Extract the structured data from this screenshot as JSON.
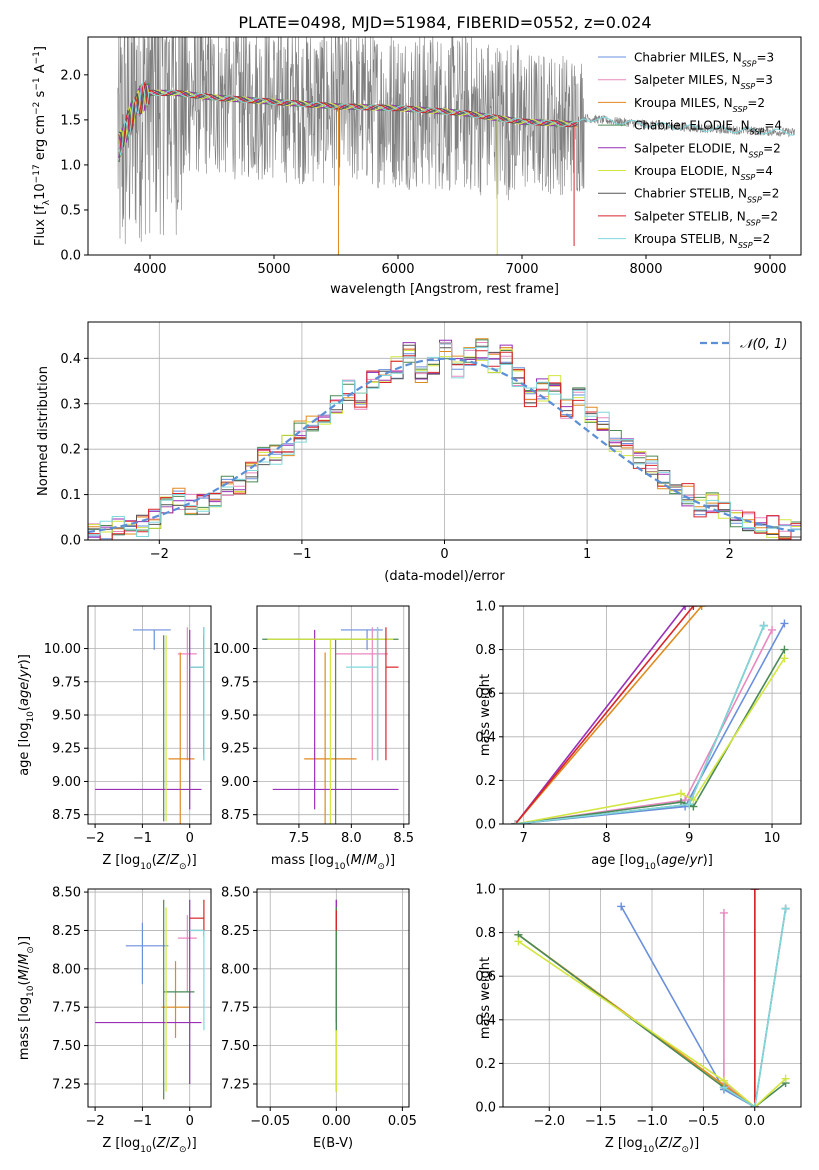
{
  "figure": {
    "title": "PLATE=0498, MJD=51984, FIBERID=0552, z=0.024"
  },
  "colors": {
    "Chabrier MILES": "#6a8fdc",
    "Salpeter MILES": "#e889c0",
    "Kroupa MILES": "#e08a1e",
    "Chabrier ELODIE": "#4a8a55",
    "Salpeter ELODIE": "#9a2fb8",
    "Kroupa ELODIE": "#d3e640",
    "Chabrier STELIB": "#555555",
    "Salpeter STELIB": "#d8252a",
    "Kroupa STELIB": "#7fd8dc",
    "data": "#808080",
    "normal": "#5b8fd6"
  },
  "chart_data": [
    {
      "type": "line",
      "title": "PLATE=0498, MJD=51984, FIBERID=0552, z=0.024",
      "xlabel": "wavelength [Angstrom, rest frame]",
      "ylabel": "Flux [f_λ 10^-17 erg cm^-2 s^-1 A^-1]",
      "xlim": [
        3500,
        9250
      ],
      "ylim": [
        0,
        2.42
      ],
      "xticks": [
        4000,
        5000,
        6000,
        7000,
        8000,
        9000
      ],
      "yticks": [
        0.0,
        0.5,
        1.0,
        1.5,
        2.0
      ],
      "legend": "top-right",
      "legend_entries": [
        "Chabrier MILES, N_SSP=3",
        "Salpeter MILES, N_SSP=3",
        "Kroupa MILES, N_SSP=2",
        "Chabrier ELODIE, N_SSP=4",
        "Salpeter ELODIE, N_SSP=2",
        "Kroupa ELODIE, N_SSP=4",
        "Chabrier STELIB, N_SSP=2",
        "Salpeter STELIB, N_SSP=2",
        "Kroupa STELIB, N_SSP=2"
      ],
      "data_range": [
        3740,
        9200
      ],
      "model_continuum": [
        [
          3750,
          1.2
        ],
        [
          3900,
          1.7
        ],
        [
          4000,
          1.8
        ],
        [
          4200,
          1.8
        ],
        [
          4500,
          1.75
        ],
        [
          5000,
          1.7
        ],
        [
          5500,
          1.65
        ],
        [
          6000,
          1.63
        ],
        [
          6500,
          1.58
        ],
        [
          7000,
          1.48
        ],
        [
          7450,
          1.45
        ],
        [
          7500,
          1.52
        ],
        [
          8000,
          1.45
        ],
        [
          8500,
          1.4
        ],
        [
          9000,
          1.37
        ],
        [
          9200,
          1.36
        ]
      ]
    },
    {
      "type": "histogram",
      "xlabel": "(data-model)/error",
      "ylabel": "Normed distribution",
      "xlim": [
        -2.5,
        2.5
      ],
      "ylim": [
        0,
        0.48
      ],
      "xticks": [
        -2,
        -1,
        0,
        1,
        2
      ],
      "yticks": [
        0.0,
        0.1,
        0.2,
        0.3,
        0.4
      ],
      "legend": "top-right",
      "legend_entries": [
        "N(0,1)"
      ],
      "bin_width": 0.1,
      "bins_from": -2.5,
      "reference_envelope": [
        0.02,
        0.02,
        0.03,
        0.02,
        0.03,
        0.05,
        0.07,
        0.09,
        0.08,
        0.08,
        0.09,
        0.12,
        0.11,
        0.15,
        0.18,
        0.19,
        0.21,
        0.24,
        0.26,
        0.28,
        0.3,
        0.33,
        0.31,
        0.35,
        0.36,
        0.38,
        0.41,
        0.37,
        0.39,
        0.42,
        0.38,
        0.4,
        0.42,
        0.39,
        0.41,
        0.36,
        0.31,
        0.33,
        0.34,
        0.29,
        0.32,
        0.28,
        0.26,
        0.22,
        0.2,
        0.18,
        0.16,
        0.13,
        0.12,
        0.1,
        0.07,
        0.08,
        0.07,
        0.05,
        0.04,
        0.03,
        0.03,
        0.02,
        0.02
      ]
    },
    {
      "type": "errorbar",
      "xlabel": "Z [log10(Z/Z_sun)]",
      "ylabel": "age  [log10(age/yr)]",
      "xlim": [
        -2.15,
        0.45
      ],
      "ylim": [
        8.68,
        10.32
      ],
      "xticks": [
        -2,
        -1,
        0
      ],
      "yticks": [
        8.75,
        9.0,
        9.25,
        9.5,
        9.75,
        10.0
      ],
      "points": [
        {
          "series": "Chabrier MILES",
          "x": -0.75,
          "xerr": [
            0.45,
            0.35
          ],
          "y": 10.14,
          "yerr": [
            0.15,
            0.0
          ]
        },
        {
          "series": "Salpeter MILES",
          "x": -0.05,
          "xerr": [
            0.2,
            0.2
          ],
          "y": 9.96,
          "yerr": [
            0.8,
            0.2
          ]
        },
        {
          "series": "Kroupa MILES",
          "x": -0.2,
          "xerr": [
            0.25,
            0.3
          ],
          "y": 9.17,
          "yerr": [
            0.6,
            0.8
          ]
        },
        {
          "series": "Chabrier ELODIE",
          "x": -0.55,
          "xerr": [
            0.0,
            0.0
          ],
          "y": 9.8,
          "yerr": [
            1.1,
            0.3
          ]
        },
        {
          "series": "Salpeter ELODIE",
          "x": -0.0,
          "xerr": [
            2.0,
            0.25
          ],
          "y": 8.94,
          "yerr": [
            0.15,
            1.2
          ]
        },
        {
          "series": "Kroupa ELODIE",
          "x": -0.5,
          "xerr": [
            0.0,
            0.0
          ],
          "y": 9.5,
          "yerr": [
            0.8,
            0.6
          ]
        },
        {
          "series": "Chabrier STELIB",
          "x": 0.3,
          "xerr": [
            0.3,
            0.0
          ],
          "y": 9.86,
          "yerr": [
            0.7,
            0.3
          ]
        },
        {
          "series": "Salpeter STELIB",
          "x": 0.3,
          "xerr": [
            0.0,
            0.0
          ],
          "y": 9.5,
          "yerr": [
            0.3,
            0.6
          ]
        },
        {
          "series": "Kroupa STELIB",
          "x": 0.3,
          "xerr": [
            0.3,
            0.0
          ],
          "y": 9.86,
          "yerr": [
            0.7,
            0.3
          ]
        }
      ]
    },
    {
      "type": "errorbar",
      "xlabel": "mass [log10(M/M_sun)]",
      "ylabel": "",
      "xlim": [
        7.1,
        8.55
      ],
      "ylim": [
        8.68,
        10.32
      ],
      "xticks": [
        7.5,
        8.0,
        8.5
      ],
      "yticks": [
        8.75,
        9.0,
        9.25,
        9.5,
        9.75,
        10.0
      ],
      "points": [
        {
          "series": "Chabrier MILES",
          "x": 8.15,
          "xerr": [
            0.25,
            0.15
          ],
          "y": 10.14,
          "yerr": [
            0.15,
            0.0
          ]
        },
        {
          "series": "Salpeter MILES",
          "x": 8.2,
          "xerr": [
            0.35,
            0.15
          ],
          "y": 9.96,
          "yerr": [
            0.8,
            0.2
          ]
        },
        {
          "series": "Kroupa MILES",
          "x": 7.75,
          "xerr": [
            0.2,
            0.3
          ],
          "y": 9.17,
          "yerr": [
            0.6,
            0.8
          ]
        },
        {
          "series": "Chabrier ELODIE",
          "x": 7.85,
          "xerr": [
            0.7,
            0.6
          ],
          "y": 10.07,
          "yerr": [
            1.4,
            0.0
          ]
        },
        {
          "series": "Salpeter ELODIE",
          "x": 7.65,
          "xerr": [
            0.4,
            0.8
          ],
          "y": 8.94,
          "yerr": [
            0.15,
            1.2
          ]
        },
        {
          "series": "Kroupa ELODIE",
          "x": 7.8,
          "xerr": [
            0.6,
            0.6
          ],
          "y": 10.07,
          "yerr": [
            1.4,
            0.0
          ]
        },
        {
          "series": "Chabrier STELIB",
          "x": 8.25,
          "xerr": [
            0.0,
            0.0
          ],
          "y": 9.86,
          "yerr": [
            0.7,
            0.3
          ]
        },
        {
          "series": "Salpeter STELIB",
          "x": 8.33,
          "xerr": [
            0.0,
            0.12
          ],
          "y": 9.86,
          "yerr": [
            0.7,
            0.3
          ]
        },
        {
          "series": "Kroupa STELIB",
          "x": 8.25,
          "xerr": [
            0.3,
            0.0
          ],
          "y": 9.86,
          "yerr": [
            0.7,
            0.3
          ]
        }
      ]
    },
    {
      "type": "line",
      "xlabel": "age  [log10(age/yr)]",
      "ylabel": "mass weight",
      "xlim": [
        6.75,
        10.35
      ],
      "ylim": [
        0,
        1.0
      ],
      "xticks": [
        7,
        8,
        9,
        10
      ],
      "yticks": [
        0.0,
        0.2,
        0.4,
        0.6,
        0.8,
        1.0
      ],
      "series": [
        {
          "series": "Chabrier MILES",
          "x": [
            6.9,
            8.95,
            10.15
          ],
          "y": [
            0.0,
            0.08,
            0.92
          ]
        },
        {
          "series": "Salpeter MILES",
          "x": [
            6.9,
            8.95,
            10.0
          ],
          "y": [
            0.0,
            0.11,
            0.89
          ]
        },
        {
          "series": "Kroupa MILES",
          "x": [
            6.9,
            9.15
          ],
          "y": [
            0.0,
            1.0
          ]
        },
        {
          "series": "Chabrier ELODIE",
          "x": [
            6.9,
            8.9,
            9.05,
            10.15
          ],
          "y": [
            0.0,
            0.1,
            0.08,
            0.8
          ]
        },
        {
          "series": "Salpeter ELODIE",
          "x": [
            6.9,
            8.95
          ],
          "y": [
            0.0,
            1.0
          ]
        },
        {
          "series": "Kroupa ELODIE",
          "x": [
            6.9,
            8.9,
            9.05,
            10.15
          ],
          "y": [
            0.0,
            0.14,
            0.11,
            0.76
          ]
        },
        {
          "series": "Chabrier STELIB",
          "x": [
            6.9,
            9.0,
            9.9
          ],
          "y": [
            0.0,
            0.09,
            0.91
          ]
        },
        {
          "series": "Salpeter STELIB",
          "x": [
            6.9,
            9.05
          ],
          "y": [
            0.0,
            1.0
          ]
        },
        {
          "series": "Kroupa STELIB",
          "x": [
            6.9,
            9.0,
            9.9
          ],
          "y": [
            0.0,
            0.09,
            0.91
          ]
        }
      ]
    },
    {
      "type": "errorbar",
      "xlabel": "Z [log10(Z/Z_sun)]",
      "ylabel": "mass [log10(M/M_sun)]",
      "xlim": [
        -2.15,
        0.45
      ],
      "ylim": [
        7.1,
        8.52
      ],
      "xticks": [
        -2,
        -1,
        0
      ],
      "yticks": [
        7.25,
        7.5,
        7.75,
        8.0,
        8.25,
        8.5
      ],
      "points": [
        {
          "series": "Chabrier MILES",
          "x": -1.0,
          "xerr": [
            0.35,
            0.55
          ],
          "y": 8.15,
          "yerr": [
            0.25,
            0.15
          ]
        },
        {
          "series": "Salpeter MILES",
          "x": -0.05,
          "xerr": [
            0.2,
            0.2
          ],
          "y": 8.2,
          "yerr": [
            0.35,
            0.15
          ]
        },
        {
          "series": "Kroupa MILES",
          "x": -0.3,
          "xerr": [
            0.3,
            0.3
          ],
          "y": 7.75,
          "yerr": [
            0.2,
            0.3
          ]
        },
        {
          "series": "Chabrier ELODIE",
          "x": -0.55,
          "xerr": [
            0.0,
            0.65
          ],
          "y": 7.85,
          "yerr": [
            0.7,
            0.6
          ]
        },
        {
          "series": "Salpeter ELODIE",
          "x": -0.0,
          "xerr": [
            2.0,
            0.25
          ],
          "y": 7.65,
          "yerr": [
            0.4,
            0.8
          ]
        },
        {
          "series": "Kroupa ELODIE",
          "x": -0.5,
          "xerr": [
            0.0,
            0.0
          ],
          "y": 7.8,
          "yerr": [
            0.6,
            0.6
          ]
        },
        {
          "series": "Chabrier STELIB",
          "x": 0.3,
          "xerr": [
            0.3,
            0.0
          ],
          "y": 8.25,
          "yerr": [
            0.0,
            0.0
          ]
        },
        {
          "series": "Salpeter STELIB",
          "x": 0.3,
          "xerr": [
            0.3,
            0.0
          ],
          "y": 8.33,
          "yerr": [
            0.12,
            0.12
          ]
        },
        {
          "series": "Kroupa STELIB",
          "x": 0.3,
          "xerr": [
            0.3,
            0.0
          ],
          "y": 8.25,
          "yerr": [
            0.65,
            0.0
          ]
        }
      ]
    },
    {
      "type": "errorbar",
      "xlabel": "E(B-V)",
      "ylabel": "",
      "xlim": [
        -0.06,
        0.055
      ],
      "ylim": [
        7.1,
        8.52
      ],
      "xticks": [
        -0.05,
        0.0,
        0.05
      ],
      "yticks": [
        7.25,
        7.5,
        7.75,
        8.0,
        8.25,
        8.5
      ],
      "points": [
        {
          "series": "Salpeter ELODIE",
          "x": 0.0,
          "xerr": [
            0.0,
            0.0
          ],
          "y": 8.0,
          "yerr": [
            0.35,
            0.45
          ]
        },
        {
          "series": "Chabrier ELODIE",
          "x": 0.0,
          "xerr": [
            0.0,
            0.0
          ],
          "y": 7.85,
          "yerr": [
            0.65,
            0.55
          ]
        },
        {
          "series": "Salpeter STELIB",
          "x": 0.0,
          "xerr": [
            0.0,
            0.0
          ],
          "y": 8.33,
          "yerr": [
            0.08,
            0.05
          ]
        },
        {
          "series": "Kroupa ELODIE",
          "x": 0.0,
          "xerr": [
            0.0,
            0.0
          ],
          "y": 7.5,
          "yerr": [
            0.3,
            0.1
          ]
        }
      ]
    },
    {
      "type": "line",
      "xlabel": "Z [log10(Z/Z_sun)]",
      "ylabel": "mass weight",
      "xlim": [
        -2.45,
        0.45
      ],
      "ylim": [
        0,
        1.0
      ],
      "xticks": [
        -2.0,
        -1.5,
        -1.0,
        -0.5,
        0.0
      ],
      "yticks": [
        0.0,
        0.2,
        0.4,
        0.6,
        0.8,
        1.0
      ],
      "series": [
        {
          "series": "Chabrier MILES",
          "x": [
            -1.3,
            -0.3,
            0.0
          ],
          "y": [
            0.92,
            0.08,
            0.0
          ]
        },
        {
          "series": "Salpeter MILES",
          "x": [
            -0.3,
            -0.3,
            0.0
          ],
          "y": [
            0.89,
            0.11,
            0.0
          ]
        },
        {
          "series": "Kroupa MILES",
          "x": [
            -2.3,
            -0.3,
            0.0
          ],
          "y": [
            0.79,
            0.1,
            0.0
          ]
        },
        {
          "series": "Chabrier ELODIE",
          "x": [
            -2.3,
            -0.3,
            0.0,
            0.3
          ],
          "y": [
            0.79,
            0.09,
            0.0,
            0.11
          ]
        },
        {
          "series": "Salpeter ELODIE",
          "x": [
            0.0,
            0.0
          ],
          "y": [
            1.0,
            0.0
          ]
        },
        {
          "series": "Kroupa ELODIE",
          "x": [
            -2.3,
            -0.3,
            0.0,
            0.3
          ],
          "y": [
            0.76,
            0.12,
            0.0,
            0.13
          ]
        },
        {
          "series": "Chabrier STELIB",
          "x": [
            -0.3,
            0.0,
            0.3
          ],
          "y": [
            0.09,
            0.0,
            0.91
          ]
        },
        {
          "series": "Salpeter STELIB",
          "x": [
            0.0,
            0.0
          ],
          "y": [
            1.0,
            0.0
          ]
        },
        {
          "series": "Kroupa STELIB",
          "x": [
            -0.3,
            0.0,
            0.3
          ],
          "y": [
            0.09,
            0.0,
            0.91
          ]
        }
      ]
    }
  ]
}
